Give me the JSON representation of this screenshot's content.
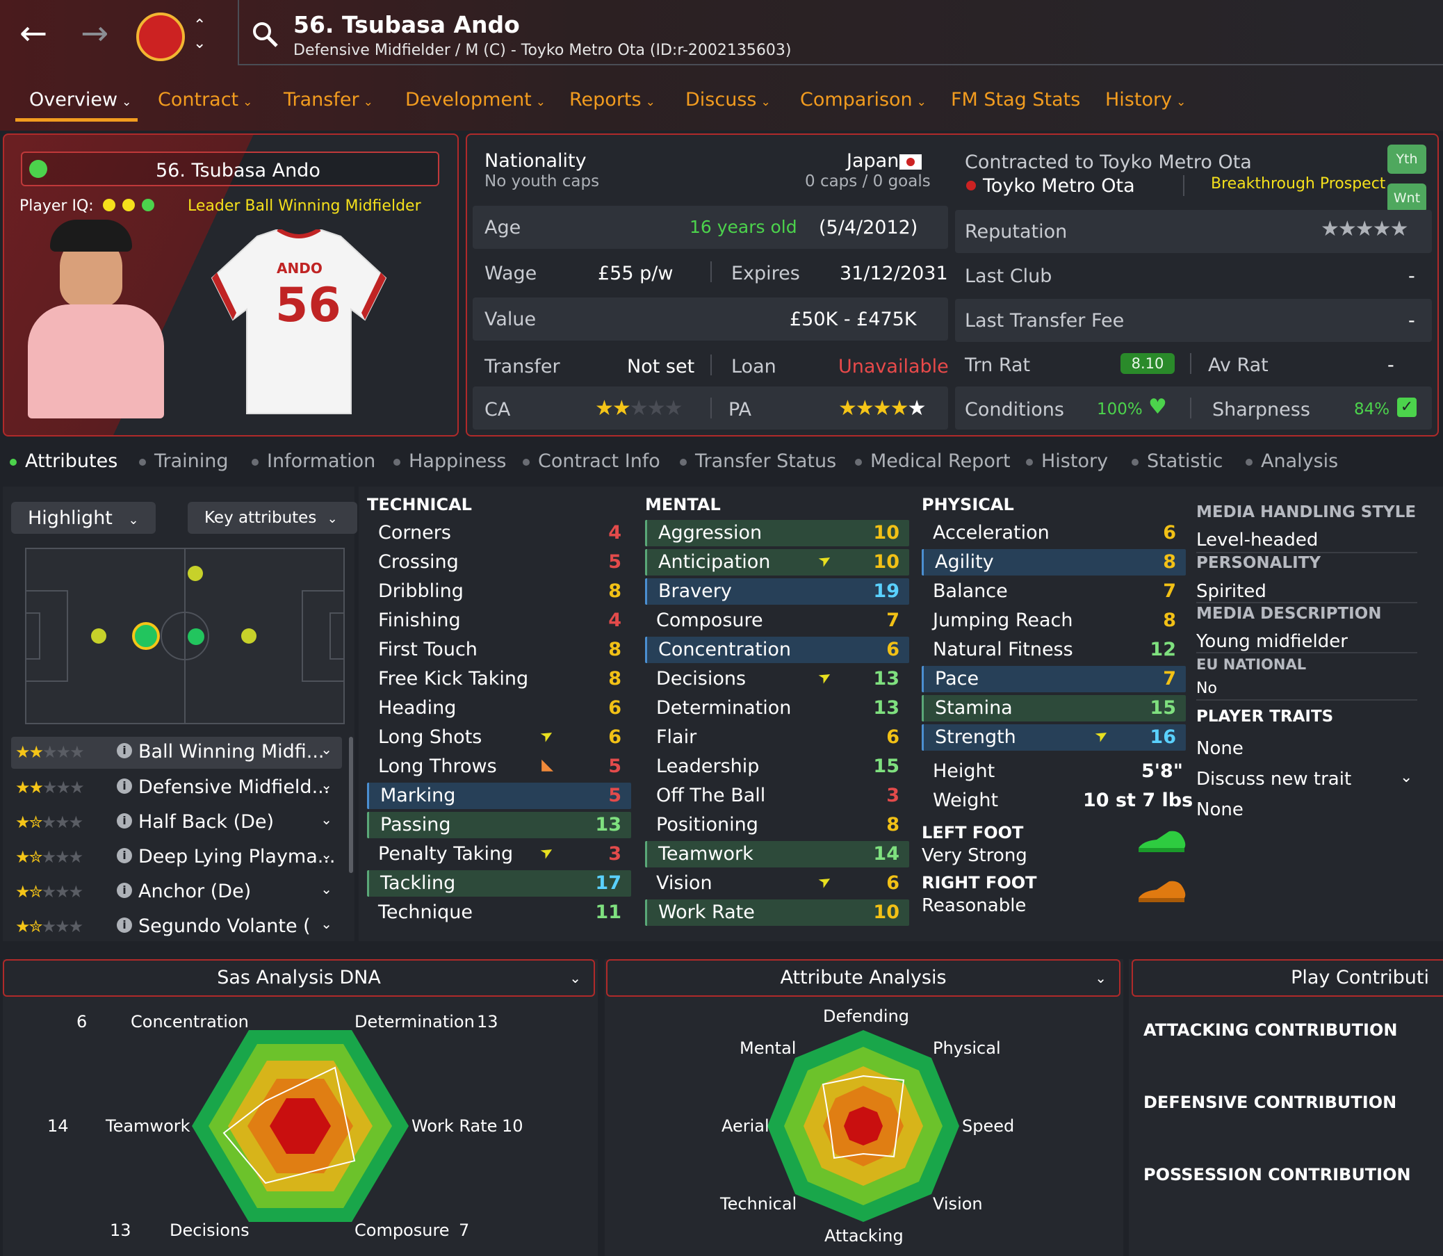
{
  "header": {
    "title": "56. Tsubasa Ando",
    "subtitle": "Defensive Midfielder / M (C) - Toyko Metro Ota (ID:r-2002135603)",
    "back_icon": "arrow-left-icon",
    "forward_icon": "arrow-right-icon",
    "search_icon": "search-icon"
  },
  "tabs": [
    {
      "label": "Overview",
      "active": true
    },
    {
      "label": "Contract"
    },
    {
      "label": "Transfer"
    },
    {
      "label": "Development"
    },
    {
      "label": "Reports"
    },
    {
      "label": "Discuss"
    },
    {
      "label": "Comparison"
    },
    {
      "label": "FM Stag Stats"
    },
    {
      "label": "History"
    }
  ],
  "profile": {
    "name": "56. Tsubasa Ando",
    "iq_label": "Player IQ:",
    "role_text": "Leader Ball Winning Midfielder",
    "shirt_name": "ANDO",
    "shirt_number": "56"
  },
  "info": {
    "nationality_label": "Nationality",
    "nationality": "Japan",
    "youth_caps": "No youth caps",
    "caps": "0 caps / 0 goals",
    "age_label": "Age",
    "age": "16 years old",
    "dob": "(5/4/2012)",
    "wage_label": "Wage",
    "wage": "£55 p/w",
    "expires_label": "Expires",
    "expires": "31/12/2031",
    "value_label": "Value",
    "value": "£50K - £475K",
    "transfer_label": "Transfer",
    "transfer": "Not set",
    "loan_label": "Loan",
    "loan": "Unavailable",
    "ca_label": "CA",
    "pa_label": "PA",
    "ca_stars": 2,
    "pa_stars": 5
  },
  "club": {
    "contracted": "Contracted to Toyko Metro Ota",
    "club_name": "Toyko Metro Ota",
    "prospect": "Breakthrough Prospect",
    "badge_yth": "Yth",
    "badge_wnt": "Wnt",
    "reputation_label": "Reputation",
    "reputation_stars": 0,
    "last_club_label": "Last Club",
    "last_club": "-",
    "fee_label": "Last Transfer Fee",
    "fee": "-",
    "trn_label": "Trn Rat",
    "trn": "8.10",
    "av_label": "Av Rat",
    "av": "-",
    "cond_label": "Conditions",
    "cond": "100%",
    "sharp_label": "Sharpness",
    "sharp": "84%"
  },
  "subtabs": [
    "Attributes",
    "Training",
    "Information",
    "Happiness",
    "Contract Info",
    "Transfer Status",
    "Medical Report",
    "History",
    "Statistic",
    "Analysis"
  ],
  "controls": {
    "highlight": "Highlight",
    "key": "Key attributes"
  },
  "roles": [
    {
      "name": "Ball Winning Midfi...",
      "stars": 2
    },
    {
      "name": "Defensive Midfield...",
      "stars": 2
    },
    {
      "name": "Half Back (De)",
      "stars": 1.5
    },
    {
      "name": "Deep Lying Playma...",
      "stars": 1.5
    },
    {
      "name": "Anchor (De)",
      "stars": 1.5
    },
    {
      "name": "Segundo Volante (",
      "stars": 1.5
    }
  ],
  "technical": {
    "title": "TECHNICAL",
    "items": [
      {
        "name": "Corners",
        "value": "4",
        "color": "red"
      },
      {
        "name": "Crossing",
        "value": "5",
        "color": "red"
      },
      {
        "name": "Dribbling",
        "value": "8",
        "color": "gold"
      },
      {
        "name": "Finishing",
        "value": "4",
        "color": "red"
      },
      {
        "name": "First Touch",
        "value": "8",
        "color": "gold"
      },
      {
        "name": "Free Kick Taking",
        "value": "8",
        "color": "gold"
      },
      {
        "name": "Heading",
        "value": "6",
        "color": "gold"
      },
      {
        "name": "Long Shots",
        "value": "6",
        "color": "gold",
        "trend": "up"
      },
      {
        "name": "Long Throws",
        "value": "5",
        "color": "red",
        "trend": "down"
      },
      {
        "name": "Marking",
        "value": "5",
        "color": "red",
        "hl": "b"
      },
      {
        "name": "Passing",
        "value": "13",
        "color": "green",
        "hl": "g"
      },
      {
        "name": "Penalty Taking",
        "value": "3",
        "color": "red",
        "trend": "up"
      },
      {
        "name": "Tackling",
        "value": "17",
        "color": "blue",
        "hl": "g"
      },
      {
        "name": "Technique",
        "value": "11",
        "color": "green"
      }
    ]
  },
  "mental": {
    "title": "MENTAL",
    "items": [
      {
        "name": "Aggression",
        "value": "10",
        "color": "gold",
        "hl": "g"
      },
      {
        "name": "Anticipation",
        "value": "10",
        "color": "gold",
        "hl": "g",
        "trend": "up"
      },
      {
        "name": "Bravery",
        "value": "19",
        "color": "blue",
        "hl": "b"
      },
      {
        "name": "Composure",
        "value": "7",
        "color": "gold"
      },
      {
        "name": "Concentration",
        "value": "6",
        "color": "gold",
        "hl": "b"
      },
      {
        "name": "Decisions",
        "value": "13",
        "color": "green",
        "trend": "up"
      },
      {
        "name": "Determination",
        "value": "13",
        "color": "green"
      },
      {
        "name": "Flair",
        "value": "6",
        "color": "gold"
      },
      {
        "name": "Leadership",
        "value": "15",
        "color": "green"
      },
      {
        "name": "Off The Ball",
        "value": "3",
        "color": "red"
      },
      {
        "name": "Positioning",
        "value": "8",
        "color": "gold"
      },
      {
        "name": "Teamwork",
        "value": "14",
        "color": "green",
        "hl": "g"
      },
      {
        "name": "Vision",
        "value": "6",
        "color": "gold",
        "trend": "up"
      },
      {
        "name": "Work Rate",
        "value": "10",
        "color": "gold",
        "hl": "g"
      }
    ]
  },
  "physical": {
    "title": "PHYSICAL",
    "items": [
      {
        "name": "Acceleration",
        "value": "6",
        "color": "gold"
      },
      {
        "name": "Agility",
        "value": "8",
        "color": "gold",
        "hl": "b"
      },
      {
        "name": "Balance",
        "value": "7",
        "color": "gold"
      },
      {
        "name": "Jumping Reach",
        "value": "8",
        "color": "gold"
      },
      {
        "name": "Natural Fitness",
        "value": "12",
        "color": "green"
      },
      {
        "name": "Pace",
        "value": "7",
        "color": "gold",
        "hl": "b"
      },
      {
        "name": "Stamina",
        "value": "15",
        "color": "green",
        "hl": "g"
      },
      {
        "name": "Strength",
        "value": "16",
        "color": "blue",
        "hl": "b",
        "trend": "up"
      }
    ],
    "height_label": "Height",
    "height": "5'8\"",
    "weight_label": "Weight",
    "weight": "10 st 7 lbs",
    "left_foot_label": "LEFT FOOT",
    "left_foot": "Very Strong",
    "right_foot_label": "RIGHT FOOT",
    "right_foot": "Reasonable"
  },
  "side": {
    "media_style_label": "MEDIA HANDLING STYLE",
    "media_style": "Level-headed",
    "personality_label": "PERSONALITY",
    "personality": "Spirited",
    "media_desc_label": "MEDIA DESCRIPTION",
    "media_desc": "Young midfielder",
    "eu_label": "EU NATIONAL",
    "eu": "No",
    "traits_label": "PLAYER TRAITS",
    "traits": "None",
    "discuss": "Discuss new trait",
    "discuss_value": "None"
  },
  "dna": {
    "title": "Sas Analysis DNA",
    "labels": [
      {
        "name": "Concentration",
        "value": "6"
      },
      {
        "name": "Determination",
        "value": "13"
      },
      {
        "name": "Work Rate",
        "value": "10"
      },
      {
        "name": "Composure",
        "value": "7"
      },
      {
        "name": "Decisions",
        "value": "13"
      },
      {
        "name": "Teamwork",
        "value": "14"
      }
    ]
  },
  "attr_analysis": {
    "title": "Attribute Analysis",
    "labels": [
      "Defending",
      "Physical",
      "Speed",
      "Vision",
      "Attacking",
      "Technical",
      "Aerial",
      "Mental"
    ]
  },
  "play_contrib": {
    "title": "Play Contributi",
    "items": [
      "ATTACKING CONTRIBUTION",
      "DEFENSIVE CONTRIBUTION",
      "POSSESSION CONTRIBUTION"
    ]
  }
}
